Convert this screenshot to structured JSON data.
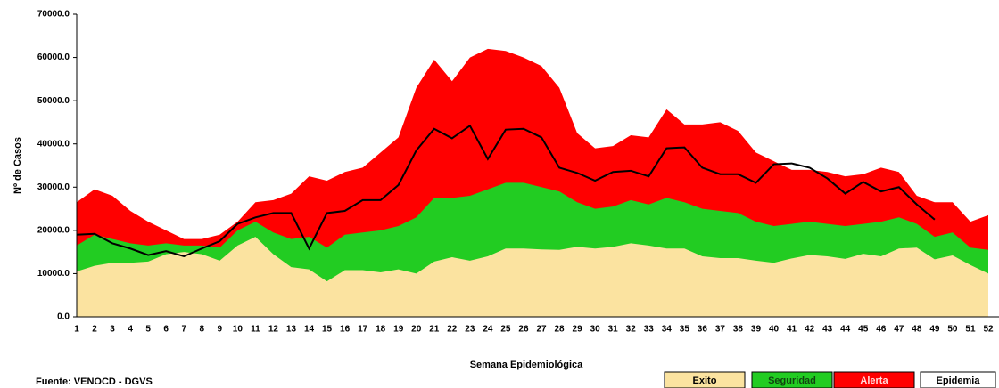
{
  "chart_data": {
    "type": "area",
    "x_label": "Semana Epidemiológica",
    "y_label": "Nº de Casos",
    "source": "Fuente: VENOCD - DGVS",
    "categories": [
      "1",
      "2",
      "3",
      "4",
      "5",
      "6",
      "7",
      "8",
      "9",
      "10",
      "11",
      "12",
      "13",
      "14",
      "15",
      "16",
      "17",
      "18",
      "19",
      "20",
      "21",
      "22",
      "23",
      "24",
      "25",
      "26",
      "27",
      "28",
      "29",
      "30",
      "31",
      "32",
      "33",
      "34",
      "35",
      "36",
      "37",
      "38",
      "39",
      "40",
      "41",
      "42",
      "43",
      "44",
      "45",
      "46",
      "47",
      "48",
      "49",
      "50",
      "51",
      "52"
    ],
    "series": [
      {
        "name": "Alerta",
        "color": "#ff0000",
        "values": [
          26500,
          29500,
          28000,
          24500,
          22000,
          20000,
          18000,
          18000,
          19000,
          22000,
          26500,
          27000,
          28500,
          32500,
          31500,
          33500,
          34500,
          38000,
          41500,
          53000,
          59500,
          54500,
          60000,
          62000,
          61500,
          60000,
          58000,
          53000,
          42500,
          39000,
          39500,
          42000,
          41500,
          48000,
          44500,
          44500,
          45000,
          43000,
          38000,
          36000,
          34000,
          34000,
          33500,
          32500,
          33000,
          34500,
          33500,
          28000,
          26500,
          26500,
          22000,
          23500
        ]
      },
      {
        "name": "Seguridad",
        "color": "#22cc22",
        "values": [
          16500,
          19000,
          18000,
          17000,
          16500,
          17000,
          16500,
          16500,
          16000,
          20000,
          22000,
          19500,
          18000,
          18500,
          16000,
          19000,
          19500,
          20000,
          21000,
          23000,
          27500,
          27500,
          28000,
          29500,
          31000,
          31000,
          30000,
          29000,
          26500,
          25000,
          25500,
          27000,
          26000,
          27500,
          26500,
          25000,
          24500,
          24000,
          22000,
          21000,
          21500,
          22000,
          21500,
          21000,
          21500,
          22000,
          23000,
          21500,
          18500,
          19500,
          16000,
          15500
        ]
      },
      {
        "name": "Exito",
        "color": "#fbe3a0",
        "values": [
          10500,
          11800,
          12500,
          12500,
          12800,
          14500,
          15000,
          14500,
          13000,
          16500,
          18500,
          14500,
          11500,
          11000,
          8200,
          10800,
          10800,
          10300,
          11000,
          10000,
          12800,
          13800,
          13000,
          14000,
          15800,
          15800,
          15600,
          15500,
          16200,
          15800,
          16200,
          17000,
          16500,
          15800,
          15800,
          14000,
          13600,
          13600,
          13000,
          12500,
          13500,
          14300,
          14000,
          13400,
          14600,
          14000,
          15800,
          16000,
          13300,
          14200,
          12000,
          10000
        ]
      },
      {
        "name": "Epidemia",
        "color": "#000000",
        "line": true,
        "values": [
          19000,
          19200,
          17000,
          15800,
          14300,
          15200,
          14000,
          15800,
          17500,
          21500,
          23000,
          24000,
          24000,
          15800,
          24000,
          24500,
          27000,
          27000,
          30500,
          38500,
          43500,
          41300,
          44200,
          36500,
          43300,
          43500,
          41500,
          34500,
          33300,
          31500,
          33500,
          33800,
          32500,
          39000,
          39200,
          34500,
          33000,
          33000,
          31000,
          35300,
          35500,
          34500,
          32000,
          28500,
          31200,
          29000,
          30000,
          26000,
          22500,
          null,
          null,
          null
        ]
      }
    ],
    "legend_order": [
      "Exito",
      "Seguridad",
      "Alerta",
      "Epidemia"
    ],
    "ylim": [
      0,
      70000
    ],
    "yticks": [
      {
        "value": 0,
        "label": "0.0"
      },
      {
        "value": 10000,
        "label": "10000.0"
      },
      {
        "value": 20000,
        "label": "20000.0"
      },
      {
        "value": 30000,
        "label": "30000.0"
      },
      {
        "value": 40000,
        "label": "40000.0"
      },
      {
        "value": 50000,
        "label": "50000.0"
      },
      {
        "value": 60000,
        "label": "60000.0"
      },
      {
        "value": 70000,
        "label": "70000.0"
      }
    ],
    "grid": false
  }
}
